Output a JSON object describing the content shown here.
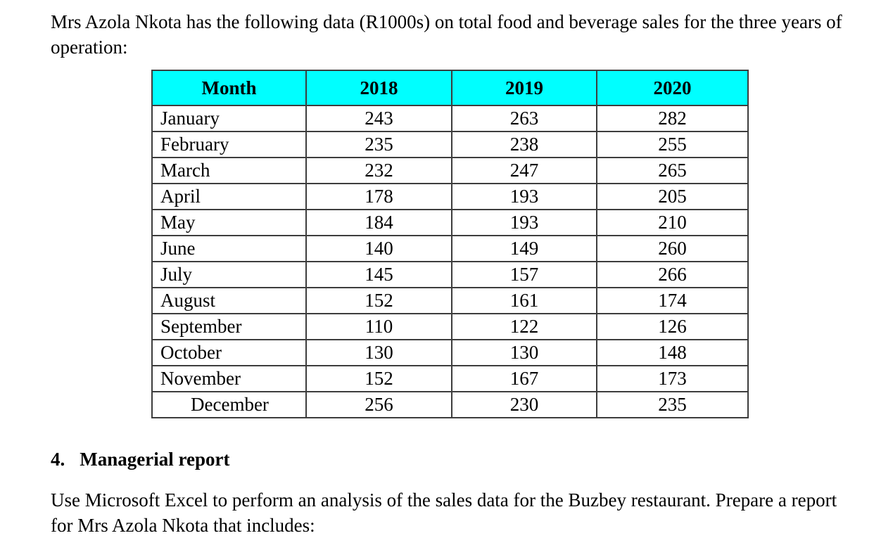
{
  "intro_paragraph": "Mrs Azola Nkota has the following data (R1000s) on total food and beverage sales for the three years of operation:",
  "table": {
    "header_bg": "#00ffff",
    "headers": [
      "Month",
      "2018",
      "2019",
      "2020"
    ],
    "rows": [
      {
        "month": "January",
        "values": [
          243,
          263,
          282
        ]
      },
      {
        "month": "February",
        "values": [
          235,
          238,
          255
        ]
      },
      {
        "month": "March",
        "values": [
          232,
          247,
          265
        ]
      },
      {
        "month": "April",
        "values": [
          178,
          193,
          205
        ]
      },
      {
        "month": "May",
        "values": [
          184,
          193,
          210
        ]
      },
      {
        "month": "June",
        "values": [
          140,
          149,
          260
        ]
      },
      {
        "month": "July",
        "values": [
          145,
          157,
          266
        ]
      },
      {
        "month": "August",
        "values": [
          152,
          161,
          174
        ]
      },
      {
        "month": "September",
        "values": [
          110,
          122,
          126
        ]
      },
      {
        "month": "October",
        "values": [
          130,
          130,
          148
        ]
      },
      {
        "month": "November",
        "values": [
          152,
          167,
          173
        ]
      },
      {
        "month": "December",
        "values": [
          256,
          230,
          235
        ]
      }
    ]
  },
  "section": {
    "number": "4.",
    "title": "Managerial report"
  },
  "closing_paragraph": "Use Microsoft Excel to perform an analysis of the sales data for the Buzbey restaurant. Prepare a report for Mrs Azola Nkota that includes:"
}
